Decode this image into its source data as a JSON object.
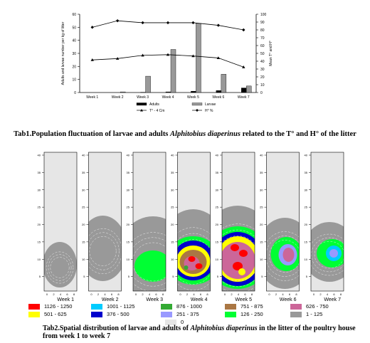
{
  "chart_data": [
    {
      "type": "bar+line",
      "categories": [
        "Week 1",
        "Week 2",
        "Week 3",
        "Week 4",
        "Week 5",
        "Week 6",
        "Week 7"
      ],
      "ylabel_left": "Adults and larvae number per kg of litter",
      "ylabel_right": "Mean T° and H°",
      "ylim_left": [
        0,
        60
      ],
      "yticks_left": [
        0,
        10,
        20,
        30,
        40,
        50,
        60
      ],
      "ylim_right": [
        0,
        100
      ],
      "yticks_right": [
        0,
        10,
        20,
        30,
        40,
        50,
        60,
        70,
        80,
        90,
        100
      ],
      "series": [
        {
          "name": "Adults",
          "kind": "bar",
          "axis": "left",
          "color": "#000000",
          "values": [
            0,
            0,
            0.2,
            0.5,
            1,
            1.5,
            3.5
          ]
        },
        {
          "name": "Larvae",
          "kind": "bar",
          "axis": "left",
          "color": "#999999",
          "values": [
            0,
            0.5,
            12.5,
            33,
            53,
            14,
            5
          ]
        },
        {
          "name": "T° - 4 Cm",
          "kind": "line",
          "axis": "left",
          "color": "#000000",
          "marker": "triangle",
          "values": [
            25,
            26,
            28.5,
            29,
            28,
            26.5,
            19.5
          ]
        },
        {
          "name": "H° %",
          "kind": "line",
          "axis": "left",
          "color": "#000000",
          "marker": "diamond",
          "values": [
            50,
            55,
            53.5,
            53.5,
            53.5,
            51.5,
            48
          ]
        }
      ],
      "legend": [
        "Adults",
        "Larvae",
        "T° - 4 Cm",
        "H° %"
      ]
    },
    {
      "type": "heatmap",
      "panels": [
        "Week 1",
        "Week 2",
        "Week 3",
        "Week 4",
        "Week 5",
        "Week 6",
        "Week 7"
      ],
      "y_ticks": [
        "40",
        "35",
        "30",
        "25",
        "20",
        "15",
        "10",
        "5"
      ],
      "x_ticks": [
        "0",
        "2",
        "4",
        "6",
        "8"
      ],
      "legend": [
        {
          "label": "1126 - 1250",
          "color": "#ff0000"
        },
        {
          "label": "1001 - 1125",
          "color": "#00ccff"
        },
        {
          "label": "876 - 1000",
          "color": "#33aa33"
        },
        {
          "label": "751 - 875",
          "color": "#aa7744"
        },
        {
          "label": "626 - 750",
          "color": "#cc6699"
        },
        {
          "label": "501 - 625",
          "color": "#ffff00"
        },
        {
          "label": "376 - 500",
          "color": "#0000cc"
        },
        {
          "label": "251 - 375",
          "color": "#9999ff"
        },
        {
          "label": "126 - 250",
          "color": "#00ff33"
        },
        {
          "label": "1 - 125",
          "color": "#999999"
        },
        {
          "label": "0",
          "color": "#e6e6e6"
        }
      ]
    }
  ],
  "captions": {
    "tab1_pre": "Tab1.Population fluctuation of larvae and adults ",
    "tab1_species": "Alphitobius diaperinus",
    "tab1_post": " related to the T° and H° of the litter",
    "tab2_pre": "Tab2.Spatial distribution of larvae and adults of ",
    "tab2_species": "Alphitobius diaperinus",
    "tab2_post": " in the litter of the poultry house from week 1 to week 7"
  }
}
